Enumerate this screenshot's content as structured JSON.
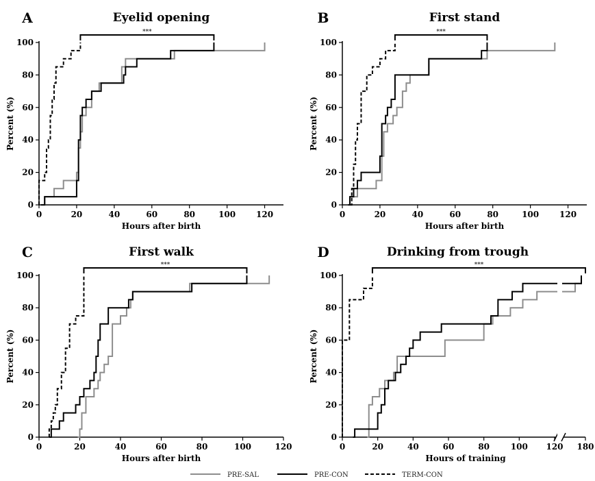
{
  "colors": {
    "PRE-SAL": "#8c8c8c",
    "PRE-CON": "#000000",
    "TERM-CON": "#000000"
  },
  "legend": [
    {
      "name": "PRE-SAL",
      "color": "#8c8c8c",
      "dash": "solid"
    },
    {
      "name": "PRE-CON",
      "color": "#000000",
      "dash": "solid"
    },
    {
      "name": "TERM-CON",
      "color": "#000000",
      "dash": "dashed"
    }
  ],
  "chart_data": [
    {
      "panel": "A",
      "type": "line",
      "title": "Eyelid opening",
      "xlabel": "Hours after birth",
      "ylabel": "Percent (%)",
      "xlim": [
        0,
        130
      ],
      "ylim": [
        0,
        100
      ],
      "xticks": [
        0,
        20,
        40,
        60,
        80,
        100,
        120
      ],
      "yticks": [
        0,
        20,
        40,
        60,
        80,
        100
      ],
      "significance": {
        "label": "***",
        "x1": 22,
        "x2": 93
      },
      "series": [
        {
          "name": "PRE-SAL",
          "steps": [
            [
              2,
              0
            ],
            [
              3,
              5
            ],
            [
              8,
              10
            ],
            [
              13,
              15
            ],
            [
              20,
              20
            ],
            [
              21,
              35
            ],
            [
              22,
              45
            ],
            [
              23,
              55
            ],
            [
              25,
              60
            ],
            [
              28,
              70
            ],
            [
              32,
              75
            ],
            [
              44,
              85
            ],
            [
              46,
              90
            ],
            [
              72,
              95
            ],
            [
              120,
              100
            ]
          ]
        },
        {
          "name": "PRE-CON",
          "steps": [
            [
              1,
              0
            ],
            [
              3,
              5
            ],
            [
              20,
              15
            ],
            [
              21,
              40
            ],
            [
              22,
              55
            ],
            [
              23,
              60
            ],
            [
              25,
              65
            ],
            [
              28,
              70
            ],
            [
              33,
              75
            ],
            [
              45,
              80
            ],
            [
              46,
              85
            ],
            [
              52,
              90
            ],
            [
              70,
              95
            ],
            [
              93,
              100
            ]
          ]
        },
        {
          "name": "TERM-CON",
          "steps": [
            [
              0,
              15
            ],
            [
              3,
              20
            ],
            [
              4,
              35
            ],
            [
              5,
              40
            ],
            [
              6,
              55
            ],
            [
              7,
              65
            ],
            [
              8,
              75
            ],
            [
              9,
              85
            ],
            [
              13,
              90
            ],
            [
              17,
              95
            ],
            [
              22,
              100
            ]
          ]
        }
      ]
    },
    {
      "panel": "B",
      "type": "line",
      "title": "First stand",
      "xlabel": "Hours after birth",
      "ylabel": "Percent (%)",
      "xlim": [
        0,
        130
      ],
      "ylim": [
        0,
        100
      ],
      "xticks": [
        0,
        20,
        40,
        60,
        80,
        100,
        120
      ],
      "yticks": [
        0,
        20,
        40,
        60,
        80,
        100
      ],
      "significance": {
        "label": "***",
        "x1": 28,
        "x2": 77
      },
      "series": [
        {
          "name": "PRE-SAL",
          "steps": [
            [
              3,
              0
            ],
            [
              4,
              5
            ],
            [
              8,
              10
            ],
            [
              18,
              15
            ],
            [
              21,
              30
            ],
            [
              22,
              45
            ],
            [
              24,
              50
            ],
            [
              27,
              55
            ],
            [
              29,
              60
            ],
            [
              32,
              70
            ],
            [
              34,
              75
            ],
            [
              36,
              80
            ],
            [
              46,
              90
            ],
            [
              77,
              95
            ],
            [
              113,
              100
            ]
          ]
        },
        {
          "name": "PRE-CON",
          "steps": [
            [
              3,
              0
            ],
            [
              4,
              5
            ],
            [
              6,
              10
            ],
            [
              8,
              15
            ],
            [
              10,
              20
            ],
            [
              20,
              30
            ],
            [
              21,
              50
            ],
            [
              23,
              55
            ],
            [
              24,
              60
            ],
            [
              26,
              65
            ],
            [
              28,
              80
            ],
            [
              46,
              90
            ],
            [
              74,
              95
            ],
            [
              77,
              100
            ]
          ]
        },
        {
          "name": "TERM-CON",
          "steps": [
            [
              4,
              0
            ],
            [
              5,
              10
            ],
            [
              6,
              25
            ],
            [
              7,
              40
            ],
            [
              8,
              50
            ],
            [
              10,
              70
            ],
            [
              13,
              80
            ],
            [
              16,
              85
            ],
            [
              20,
              90
            ],
            [
              23,
              95
            ],
            [
              28,
              100
            ]
          ]
        }
      ]
    },
    {
      "panel": "C",
      "type": "line",
      "title": "First walk",
      "xlabel": "Hours after birth",
      "ylabel": "Percent (%)",
      "xlim": [
        0,
        120
      ],
      "ylim": [
        0,
        100
      ],
      "xticks": [
        0,
        20,
        40,
        60,
        80,
        100,
        120
      ],
      "yticks": [
        0,
        20,
        40,
        60,
        80,
        100
      ],
      "significance": {
        "label": "***",
        "x1": 22,
        "x2": 102
      },
      "series": [
        {
          "name": "PRE-SAL",
          "steps": [
            [
              19,
              0
            ],
            [
              20,
              5
            ],
            [
              21,
              15
            ],
            [
              23,
              25
            ],
            [
              27,
              30
            ],
            [
              29,
              35
            ],
            [
              30,
              40
            ],
            [
              32,
              45
            ],
            [
              34,
              50
            ],
            [
              36,
              70
            ],
            [
              40,
              75
            ],
            [
              43,
              80
            ],
            [
              45,
              85
            ],
            [
              46,
              90
            ],
            [
              74,
              95
            ],
            [
              113,
              100
            ]
          ]
        },
        {
          "name": "PRE-CON",
          "steps": [
            [
              5,
              0
            ],
            [
              6,
              5
            ],
            [
              10,
              10
            ],
            [
              12,
              15
            ],
            [
              18,
              20
            ],
            [
              20,
              25
            ],
            [
              22,
              30
            ],
            [
              25,
              35
            ],
            [
              27,
              40
            ],
            [
              28,
              50
            ],
            [
              29,
              60
            ],
            [
              30,
              70
            ],
            [
              34,
              80
            ],
            [
              44,
              85
            ],
            [
              46,
              90
            ],
            [
              75,
              95
            ],
            [
              102,
              100
            ]
          ]
        },
        {
          "name": "TERM-CON",
          "steps": [
            [
              5,
              5
            ],
            [
              6,
              10
            ],
            [
              7,
              15
            ],
            [
              8,
              20
            ],
            [
              9,
              30
            ],
            [
              11,
              40
            ],
            [
              13,
              55
            ],
            [
              15,
              70
            ],
            [
              18,
              75
            ],
            [
              22,
              100
            ]
          ]
        }
      ]
    },
    {
      "panel": "D",
      "type": "line",
      "title": "Drinking from trough",
      "xlabel": "Hours of training",
      "ylabel": "Percent (%)",
      "xlim": [
        0,
        180
      ],
      "ylim": [
        0,
        100
      ],
      "xticks": [
        0,
        20,
        40,
        60,
        80,
        100,
        120,
        180
      ],
      "yticks": [
        0,
        20,
        40,
        60,
        80,
        100
      ],
      "axis_break": [
        120,
        170
      ],
      "significance": {
        "label": "***",
        "x1": 17,
        "x2": 180
      },
      "series": [
        {
          "name": "PRE-SAL",
          "steps": [
            [
              14,
              0
            ],
            [
              15,
              20
            ],
            [
              17,
              25
            ],
            [
              21,
              30
            ],
            [
              24,
              35
            ],
            [
              29,
              40
            ],
            [
              31,
              50
            ],
            [
              35,
              50
            ],
            [
              58,
              60
            ],
            [
              80,
              70
            ],
            [
              85,
              75
            ],
            [
              95,
              80
            ],
            [
              102,
              85
            ],
            [
              110,
              90
            ],
            [
              175,
              95
            ],
            [
              178,
              100
            ]
          ]
        },
        {
          "name": "PRE-CON",
          "steps": [
            [
              6,
              0
            ],
            [
              7,
              5
            ],
            [
              17,
              5
            ],
            [
              20,
              15
            ],
            [
              22,
              20
            ],
            [
              24,
              30
            ],
            [
              26,
              35
            ],
            [
              30,
              40
            ],
            [
              33,
              45
            ],
            [
              36,
              50
            ],
            [
              38,
              55
            ],
            [
              40,
              60
            ],
            [
              44,
              65
            ],
            [
              56,
              70
            ],
            [
              84,
              75
            ],
            [
              88,
              85
            ],
            [
              96,
              90
            ],
            [
              102,
              95
            ],
            [
              178,
              100
            ]
          ]
        },
        {
          "name": "TERM-CON",
          "steps": [
            [
              0,
              60
            ],
            [
              4,
              85
            ],
            [
              10,
              85
            ],
            [
              12,
              92
            ],
            [
              14,
              92
            ],
            [
              17,
              100
            ]
          ]
        }
      ]
    }
  ]
}
